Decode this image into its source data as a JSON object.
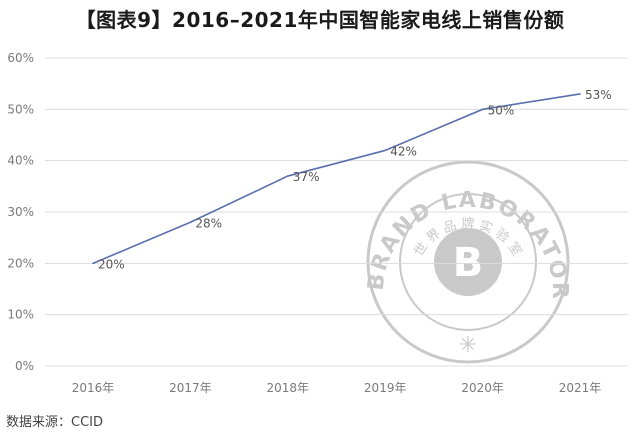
{
  "title": "【图表9】2016–2021年中国智能家电线上销售份额",
  "source": "数据来源：CCID",
  "watermark": {
    "ring_text": "WORLD BRAND LABORATORY(WBL)",
    "center_letter": "B",
    "inner_text": "世 界 品 牌 实 验 室",
    "color": "#c9c9c9"
  },
  "chart_data": {
    "type": "line",
    "title": "【图表9】2016–2021年中国智能家电线上销售份额",
    "categories": [
      "2016年",
      "2017年",
      "2018年",
      "2019年",
      "2020年",
      "2021年"
    ],
    "series": [
      {
        "values": [
          20,
          28,
          37,
          42,
          50,
          53
        ],
        "labels": [
          "20%",
          "28%",
          "37%",
          "42%",
          "50%",
          "53%"
        ],
        "color": "#5b6fae"
      }
    ],
    "yticks": [
      "0%",
      "10%",
      "20%",
      "30%",
      "40%",
      "50%",
      "60%"
    ],
    "ylim": [
      0,
      60
    ],
    "xlabel": "",
    "ylabel": "",
    "grid": true,
    "grid_color": "#dcdcdc"
  }
}
